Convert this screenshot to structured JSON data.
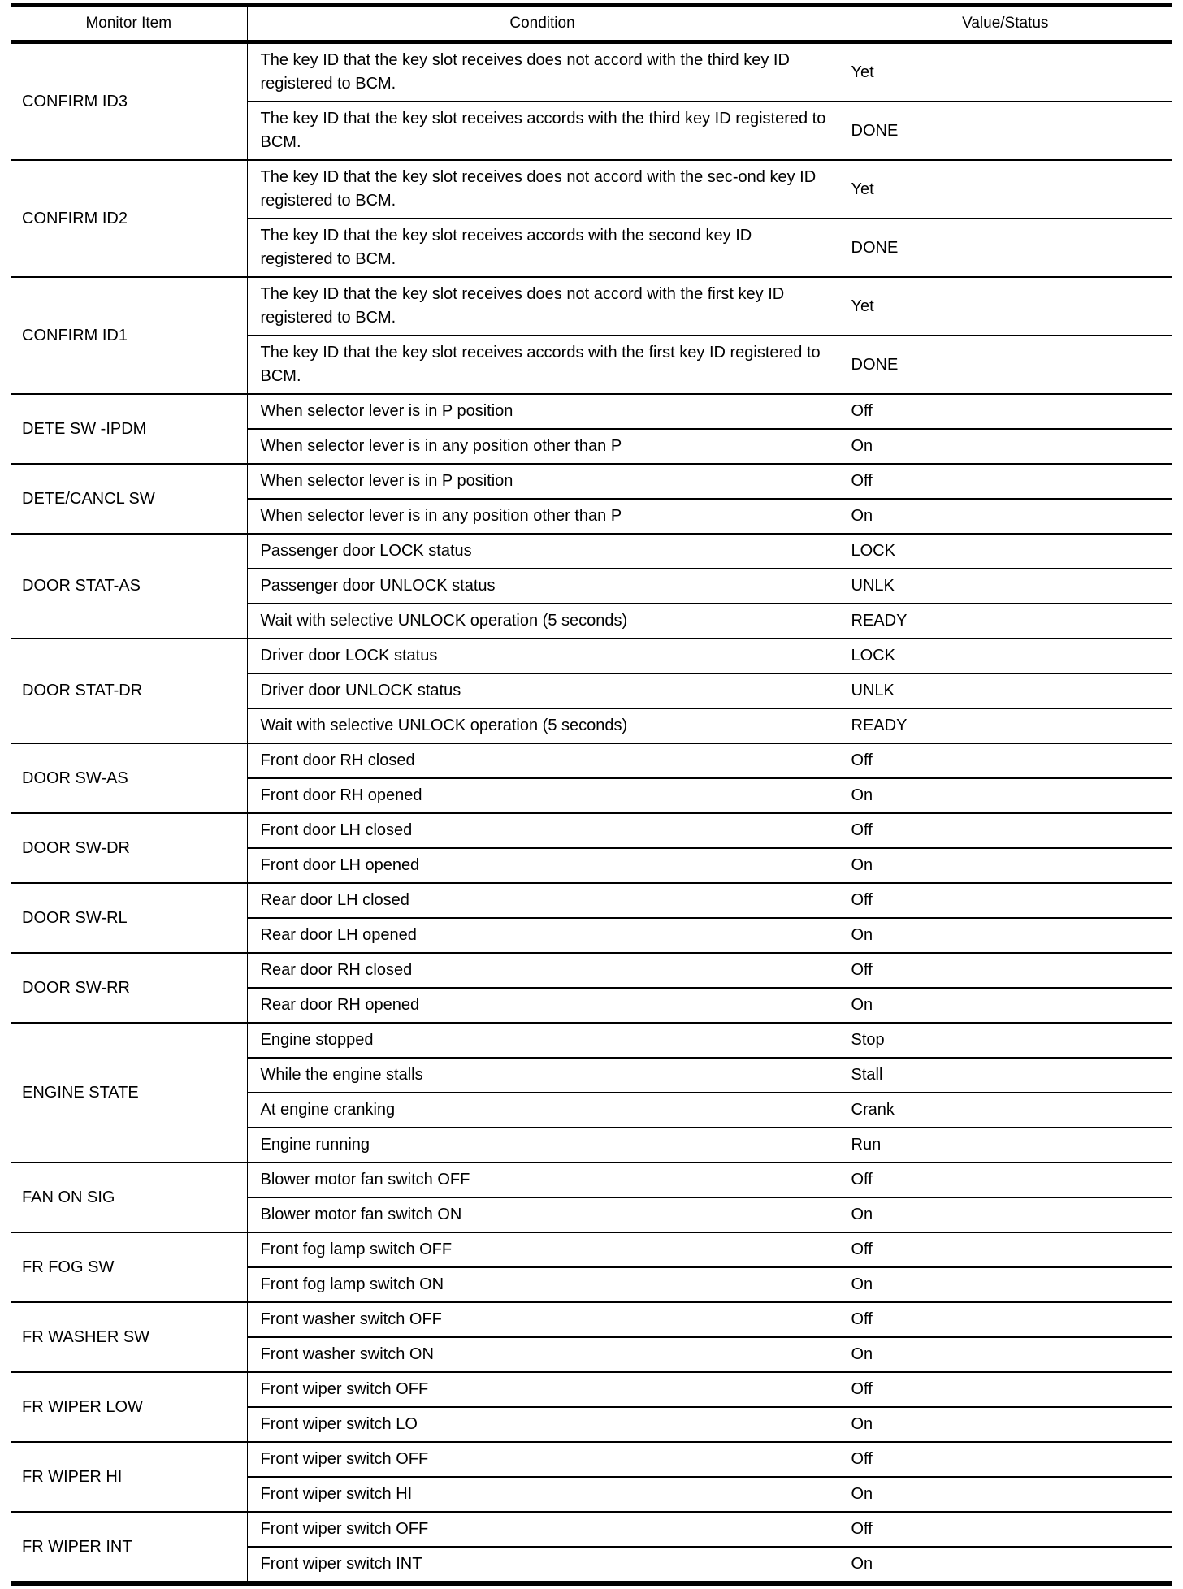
{
  "headers": {
    "item": "Monitor Item",
    "condition": "Condition",
    "value": "Value/Status"
  },
  "groups": [
    {
      "item": "CONFIRM ID3",
      "rows": [
        {
          "condition": "The key ID that the key slot receives does not accord with the third key ID registered to BCM.",
          "value": "Yet"
        },
        {
          "condition": "The key ID that the key slot receives accords with the third key ID registered to BCM.",
          "value": "DONE"
        }
      ]
    },
    {
      "item": "CONFIRM ID2",
      "rows": [
        {
          "condition": "The key ID that the key slot receives does not accord with the sec-ond key ID registered to BCM.",
          "value": "Yet"
        },
        {
          "condition": "The key ID that the key slot receives accords with the second key ID registered to BCM.",
          "value": "DONE"
        }
      ]
    },
    {
      "item": "CONFIRM ID1",
      "rows": [
        {
          "condition": "The key ID that the key slot receives does not accord with the first key ID registered to BCM.",
          "value": "Yet"
        },
        {
          "condition": "The key ID that the key slot receives accords with the first key ID registered to BCM.",
          "value": "DONE"
        }
      ]
    },
    {
      "item": "DETE SW -IPDM",
      "rows": [
        {
          "condition": "When selector lever is in P position",
          "value": "Off"
        },
        {
          "condition": "When selector lever is in any position other than P",
          "value": "On"
        }
      ]
    },
    {
      "item": "DETE/CANCL SW",
      "rows": [
        {
          "condition": "When selector lever is in P position",
          "value": "Off"
        },
        {
          "condition": "When selector lever is in any position other than P",
          "value": "On"
        }
      ]
    },
    {
      "item": "DOOR STAT-AS",
      "rows": [
        {
          "condition": "Passenger door LOCK status",
          "value": "LOCK"
        },
        {
          "condition": "Passenger door UNLOCK status",
          "value": "UNLK"
        },
        {
          "condition": "Wait with selective UNLOCK operation (5 seconds)",
          "value": "READY"
        }
      ]
    },
    {
      "item": "DOOR STAT-DR",
      "rows": [
        {
          "condition": "Driver door LOCK status",
          "value": "LOCK"
        },
        {
          "condition": "Driver door UNLOCK status",
          "value": "UNLK"
        },
        {
          "condition": "Wait with selective UNLOCK operation (5 seconds)",
          "value": "READY"
        }
      ]
    },
    {
      "item": "DOOR SW-AS",
      "rows": [
        {
          "condition": "Front door RH closed",
          "value": "Off"
        },
        {
          "condition": "Front door RH opened",
          "value": "On"
        }
      ]
    },
    {
      "item": "DOOR SW-DR",
      "rows": [
        {
          "condition": "Front door LH closed",
          "value": "Off"
        },
        {
          "condition": "Front door LH opened",
          "value": "On"
        }
      ]
    },
    {
      "item": "DOOR SW-RL",
      "rows": [
        {
          "condition": "Rear door LH closed",
          "value": "Off"
        },
        {
          "condition": "Rear door LH opened",
          "value": "On"
        }
      ]
    },
    {
      "item": "DOOR SW-RR",
      "rows": [
        {
          "condition": "Rear door RH closed",
          "value": "Off"
        },
        {
          "condition": "Rear door RH opened",
          "value": "On"
        }
      ]
    },
    {
      "item": "ENGINE STATE",
      "rows": [
        {
          "condition": "Engine stopped",
          "value": "Stop"
        },
        {
          "condition": "While the engine stalls",
          "value": "Stall"
        },
        {
          "condition": "At engine cranking",
          "value": "Crank"
        },
        {
          "condition": "Engine running",
          "value": "Run"
        }
      ]
    },
    {
      "item": "FAN ON SIG",
      "rows": [
        {
          "condition": "Blower motor fan switch OFF",
          "value": "Off"
        },
        {
          "condition": "Blower motor fan switch ON",
          "value": "On"
        }
      ]
    },
    {
      "item": "FR FOG SW",
      "rows": [
        {
          "condition": "Front fog lamp switch OFF",
          "value": "Off"
        },
        {
          "condition": "Front fog lamp switch ON",
          "value": "On"
        }
      ]
    },
    {
      "item": "FR WASHER SW",
      "rows": [
        {
          "condition": "Front washer switch OFF",
          "value": "Off"
        },
        {
          "condition": "Front washer switch ON",
          "value": "On"
        }
      ]
    },
    {
      "item": "FR WIPER LOW",
      "rows": [
        {
          "condition": "Front wiper switch OFF",
          "value": "Off"
        },
        {
          "condition": "Front wiper switch LO",
          "value": "On"
        }
      ]
    },
    {
      "item": "FR WIPER HI",
      "rows": [
        {
          "condition": "Front wiper switch OFF",
          "value": "Off"
        },
        {
          "condition": "Front wiper switch HI",
          "value": "On"
        }
      ]
    },
    {
      "item": "FR WIPER INT",
      "rows": [
        {
          "condition": "Front wiper switch OFF",
          "value": "Off"
        },
        {
          "condition": "Front wiper switch INT",
          "value": "On"
        }
      ]
    }
  ]
}
